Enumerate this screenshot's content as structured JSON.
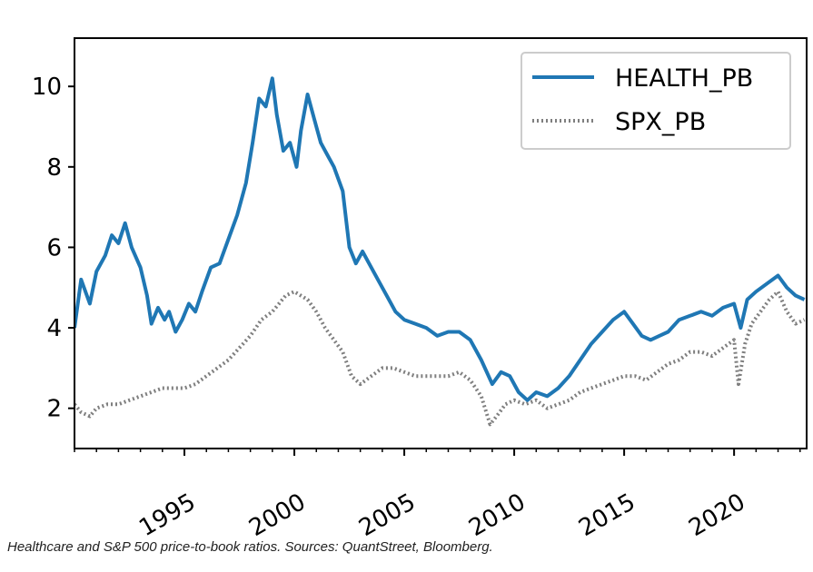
{
  "chart_data": {
    "type": "line",
    "title": "",
    "xlabel": "",
    "ylabel": "",
    "xlim": [
      1990.0,
      2023.3
    ],
    "ylim": [
      1.0,
      11.2
    ],
    "grid": false,
    "legend_position": "top-right",
    "x_ticks": [
      1995,
      2000,
      2005,
      2010,
      2015,
      2020
    ],
    "x_tick_labels": [
      "1995",
      "2000",
      "2005",
      "2010",
      "2015",
      "2020"
    ],
    "y_ticks": [
      2,
      4,
      6,
      8,
      10
    ],
    "y_tick_labels": [
      "2",
      "4",
      "6",
      "8",
      "10"
    ],
    "series": [
      {
        "name": "HEALTH_PB",
        "color": "#1f77b4",
        "style": "solid",
        "points": [
          [
            1990.0,
            4.0
          ],
          [
            1990.3,
            5.2
          ],
          [
            1990.7,
            4.6
          ],
          [
            1991.0,
            5.4
          ],
          [
            1991.4,
            5.8
          ],
          [
            1991.7,
            6.3
          ],
          [
            1992.0,
            6.1
          ],
          [
            1992.3,
            6.6
          ],
          [
            1992.6,
            6.0
          ],
          [
            1993.0,
            5.5
          ],
          [
            1993.3,
            4.8
          ],
          [
            1993.5,
            4.1
          ],
          [
            1993.8,
            4.5
          ],
          [
            1994.1,
            4.2
          ],
          [
            1994.3,
            4.4
          ],
          [
            1994.6,
            3.9
          ],
          [
            1994.9,
            4.2
          ],
          [
            1995.2,
            4.6
          ],
          [
            1995.5,
            4.4
          ],
          [
            1995.8,
            4.9
          ],
          [
            1996.2,
            5.5
          ],
          [
            1996.6,
            5.6
          ],
          [
            1997.0,
            6.2
          ],
          [
            1997.4,
            6.8
          ],
          [
            1997.8,
            7.6
          ],
          [
            1998.1,
            8.6
          ],
          [
            1998.4,
            9.7
          ],
          [
            1998.7,
            9.5
          ],
          [
            1999.0,
            10.2
          ],
          [
            1999.2,
            9.3
          ],
          [
            1999.5,
            8.4
          ],
          [
            1999.8,
            8.6
          ],
          [
            2000.1,
            8.0
          ],
          [
            2000.3,
            8.9
          ],
          [
            2000.6,
            9.8
          ],
          [
            2000.9,
            9.2
          ],
          [
            2001.2,
            8.6
          ],
          [
            2001.5,
            8.3
          ],
          [
            2001.8,
            8.0
          ],
          [
            2002.2,
            7.4
          ],
          [
            2002.5,
            6.0
          ],
          [
            2002.8,
            5.6
          ],
          [
            2003.1,
            5.9
          ],
          [
            2003.4,
            5.6
          ],
          [
            2003.8,
            5.2
          ],
          [
            2004.2,
            4.8
          ],
          [
            2004.6,
            4.4
          ],
          [
            2005.0,
            4.2
          ],
          [
            2005.5,
            4.1
          ],
          [
            2006.0,
            4.0
          ],
          [
            2006.5,
            3.8
          ],
          [
            2007.0,
            3.9
          ],
          [
            2007.5,
            3.9
          ],
          [
            2008.0,
            3.7
          ],
          [
            2008.5,
            3.2
          ],
          [
            2009.0,
            2.6
          ],
          [
            2009.4,
            2.9
          ],
          [
            2009.8,
            2.8
          ],
          [
            2010.2,
            2.4
          ],
          [
            2010.6,
            2.2
          ],
          [
            2011.0,
            2.4
          ],
          [
            2011.5,
            2.3
          ],
          [
            2012.0,
            2.5
          ],
          [
            2012.5,
            2.8
          ],
          [
            2013.0,
            3.2
          ],
          [
            2013.5,
            3.6
          ],
          [
            2014.0,
            3.9
          ],
          [
            2014.5,
            4.2
          ],
          [
            2015.0,
            4.4
          ],
          [
            2015.4,
            4.1
          ],
          [
            2015.8,
            3.8
          ],
          [
            2016.2,
            3.7
          ],
          [
            2016.6,
            3.8
          ],
          [
            2017.0,
            3.9
          ],
          [
            2017.5,
            4.2
          ],
          [
            2018.0,
            4.3
          ],
          [
            2018.5,
            4.4
          ],
          [
            2019.0,
            4.3
          ],
          [
            2019.5,
            4.5
          ],
          [
            2020.0,
            4.6
          ],
          [
            2020.3,
            4.0
          ],
          [
            2020.6,
            4.7
          ],
          [
            2021.0,
            4.9
          ],
          [
            2021.5,
            5.1
          ],
          [
            2022.0,
            5.3
          ],
          [
            2022.4,
            5.0
          ],
          [
            2022.8,
            4.8
          ],
          [
            2023.2,
            4.7
          ]
        ]
      },
      {
        "name": "SPX_PB",
        "color": "#7f7f7f",
        "style": "dotted",
        "points": [
          [
            1990.0,
            2.1
          ],
          [
            1990.3,
            1.9
          ],
          [
            1990.7,
            1.8
          ],
          [
            1991.0,
            2.0
          ],
          [
            1991.5,
            2.1
          ],
          [
            1992.0,
            2.1
          ],
          [
            1992.5,
            2.2
          ],
          [
            1993.0,
            2.3
          ],
          [
            1993.5,
            2.4
          ],
          [
            1994.0,
            2.5
          ],
          [
            1994.5,
            2.5
          ],
          [
            1995.0,
            2.5
          ],
          [
            1995.5,
            2.6
          ],
          [
            1996.0,
            2.8
          ],
          [
            1996.5,
            3.0
          ],
          [
            1997.0,
            3.2
          ],
          [
            1997.5,
            3.5
          ],
          [
            1998.0,
            3.8
          ],
          [
            1998.5,
            4.2
          ],
          [
            1999.0,
            4.4
          ],
          [
            1999.3,
            4.6
          ],
          [
            1999.6,
            4.8
          ],
          [
            2000.0,
            4.9
          ],
          [
            2000.3,
            4.8
          ],
          [
            2000.6,
            4.7
          ],
          [
            2001.0,
            4.4
          ],
          [
            2001.4,
            4.0
          ],
          [
            2001.8,
            3.7
          ],
          [
            2002.2,
            3.4
          ],
          [
            2002.6,
            2.8
          ],
          [
            2003.0,
            2.6
          ],
          [
            2003.5,
            2.8
          ],
          [
            2004.0,
            3.0
          ],
          [
            2004.5,
            3.0
          ],
          [
            2005.0,
            2.9
          ],
          [
            2005.5,
            2.8
          ],
          [
            2006.0,
            2.8
          ],
          [
            2006.5,
            2.8
          ],
          [
            2007.0,
            2.8
          ],
          [
            2007.5,
            2.9
          ],
          [
            2008.0,
            2.7
          ],
          [
            2008.5,
            2.3
          ],
          [
            2008.9,
            1.6
          ],
          [
            2009.2,
            1.8
          ],
          [
            2009.6,
            2.1
          ],
          [
            2010.0,
            2.2
          ],
          [
            2010.5,
            2.1
          ],
          [
            2011.0,
            2.2
          ],
          [
            2011.5,
            2.0
          ],
          [
            2012.0,
            2.1
          ],
          [
            2012.5,
            2.2
          ],
          [
            2013.0,
            2.4
          ],
          [
            2013.5,
            2.5
          ],
          [
            2014.0,
            2.6
          ],
          [
            2014.5,
            2.7
          ],
          [
            2015.0,
            2.8
          ],
          [
            2015.5,
            2.8
          ],
          [
            2016.0,
            2.7
          ],
          [
            2016.5,
            2.9
          ],
          [
            2017.0,
            3.1
          ],
          [
            2017.5,
            3.2
          ],
          [
            2018.0,
            3.4
          ],
          [
            2018.5,
            3.4
          ],
          [
            2019.0,
            3.3
          ],
          [
            2019.5,
            3.5
          ],
          [
            2020.0,
            3.7
          ],
          [
            2020.2,
            2.6
          ],
          [
            2020.5,
            3.6
          ],
          [
            2020.8,
            4.1
          ],
          [
            2021.2,
            4.4
          ],
          [
            2021.6,
            4.7
          ],
          [
            2022.0,
            4.9
          ],
          [
            2022.4,
            4.4
          ],
          [
            2022.8,
            4.1
          ],
          [
            2023.2,
            4.2
          ]
        ]
      }
    ]
  },
  "caption": "Healthcare and S&P 500 price-to-book ratios. Sources: QuantStreet, Bloomberg."
}
